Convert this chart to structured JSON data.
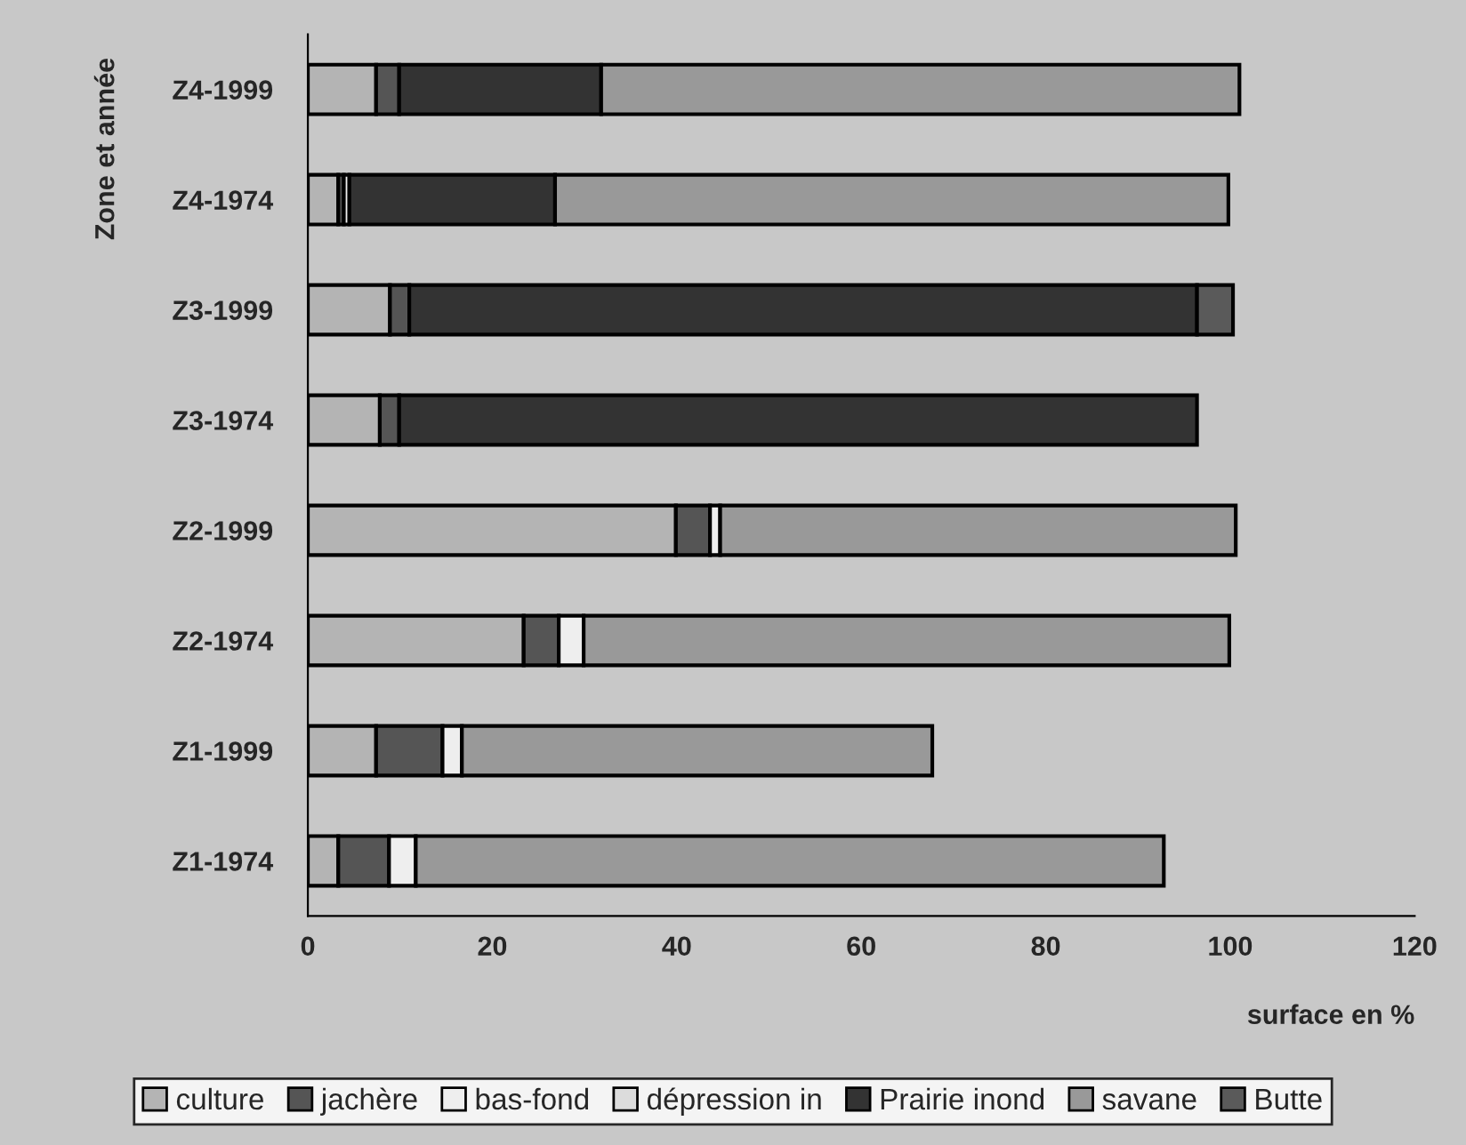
{
  "chart_data": {
    "type": "bar",
    "orientation": "horizontal",
    "stacked": true,
    "xlabel": "surface en %",
    "ylabel": "Zone et année",
    "categories": [
      "Z4-1999",
      "Z4-1974",
      "Z3-1999",
      "Z3-1974",
      "Z2-1999",
      "Z2-1974",
      "Z1-1999",
      "Z1-1974"
    ],
    "series": [
      {
        "name": "culture",
        "color": "#b4b4b4",
        "values": [
          7.4,
          3.3,
          8.9,
          7.8,
          39.9,
          23.4,
          7.4,
          3.3
        ]
      },
      {
        "name": "jachère",
        "color": "#555555",
        "values": [
          2.5,
          0.6,
          2.1,
          2.1,
          3.7,
          3.8,
          7.2,
          5.5
        ]
      },
      {
        "name": "bas-fond",
        "color": "#eeeeee",
        "values": [
          null,
          0.6,
          null,
          null,
          1.1,
          2.7,
          2.1,
          2.9
        ]
      },
      {
        "name": "dépression in",
        "color": "#dcdcdc",
        "values": [
          null,
          null,
          null,
          null,
          null,
          null,
          null,
          null
        ]
      },
      {
        "name": "Prairie inond",
        "color": "#333333",
        "values": [
          21.9,
          22.3,
          85.4,
          86.5,
          null,
          null,
          null,
          null
        ]
      },
      {
        "name": "savane",
        "color": "#999999",
        "values": [
          69.2,
          73.0,
          null,
          null,
          55.9,
          70.0,
          51.0,
          81.1
        ]
      },
      {
        "name": "Butte",
        "color": "#5a5a5a",
        "values": [
          null,
          null,
          3.9,
          null,
          null,
          null,
          null,
          null
        ]
      }
    ],
    "xlim": [
      0,
      120
    ],
    "xticks": [
      0,
      20,
      40,
      60,
      80,
      100,
      120
    ],
    "legend": "bottom"
  }
}
